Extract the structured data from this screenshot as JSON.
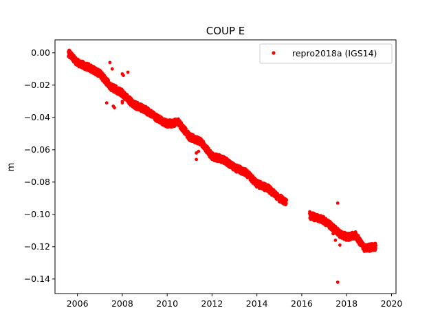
{
  "chart_data": {
    "type": "scatter",
    "title": "COUP E",
    "xlabel": "",
    "ylabel": "m",
    "xlim": [
      2005.0,
      2020.2
    ],
    "ylim": [
      -0.149,
      0.008
    ],
    "x_ticks": [
      2006,
      2008,
      2010,
      2012,
      2014,
      2016,
      2018,
      2020
    ],
    "x_tick_labels": [
      "2006",
      "2008",
      "2010",
      "2012",
      "2014",
      "2016",
      "2018",
      "2020"
    ],
    "y_ticks": [
      0.0,
      -0.02,
      -0.04,
      -0.06,
      -0.08,
      -0.1,
      -0.12,
      -0.14
    ],
    "y_tick_labels": [
      "0.00",
      "−0.02",
      "−0.04",
      "−0.06",
      "−0.08",
      "−0.10",
      "−0.12",
      "−0.14"
    ],
    "grid": false,
    "legend_position": "top-right",
    "series": [
      {
        "name": "repro2018a (IGS14)",
        "color": "#ff0000",
        "marker": "circle",
        "trend": [
          [
            2005.6,
            0.0
          ],
          [
            2006.0,
            -0.006
          ],
          [
            2006.5,
            -0.009
          ],
          [
            2007.0,
            -0.013
          ],
          [
            2007.5,
            -0.021
          ],
          [
            2008.0,
            -0.025
          ],
          [
            2008.5,
            -0.032
          ],
          [
            2009.0,
            -0.035
          ],
          [
            2009.5,
            -0.04
          ],
          [
            2010.0,
            -0.044
          ],
          [
            2010.5,
            -0.043
          ],
          [
            2011.0,
            -0.052
          ],
          [
            2011.5,
            -0.055
          ],
          [
            2012.0,
            -0.064
          ],
          [
            2012.5,
            -0.066
          ],
          [
            2013.0,
            -0.071
          ],
          [
            2013.5,
            -0.074
          ],
          [
            2014.0,
            -0.081
          ],
          [
            2014.5,
            -0.084
          ],
          [
            2015.0,
            -0.09
          ],
          [
            2015.3,
            -0.092
          ],
          [
            2016.4,
            -0.101
          ],
          [
            2016.9,
            -0.103
          ],
          [
            2017.3,
            -0.107
          ],
          [
            2017.7,
            -0.112
          ],
          [
            2018.0,
            -0.114
          ],
          [
            2018.4,
            -0.113
          ],
          [
            2018.8,
            -0.121
          ],
          [
            2019.3,
            -0.12
          ]
        ],
        "outliers": [
          [
            2007.3,
            -0.031
          ],
          [
            2007.45,
            -0.006
          ],
          [
            2007.55,
            -0.01
          ],
          [
            2007.6,
            -0.033
          ],
          [
            2007.65,
            -0.034
          ],
          [
            2008.0,
            -0.03
          ],
          [
            2008.0,
            -0.031
          ],
          [
            2008.05,
            -0.014
          ],
          [
            2008.25,
            -0.012
          ],
          [
            2008.0,
            -0.013
          ],
          [
            2011.3,
            -0.066
          ],
          [
            2011.3,
            -0.062
          ],
          [
            2011.4,
            -0.061
          ],
          [
            2017.6,
            -0.093
          ],
          [
            2017.6,
            -0.142
          ],
          [
            2017.4,
            -0.112
          ],
          [
            2017.5,
            -0.116
          ],
          [
            2017.7,
            -0.119
          ]
        ]
      }
    ]
  }
}
